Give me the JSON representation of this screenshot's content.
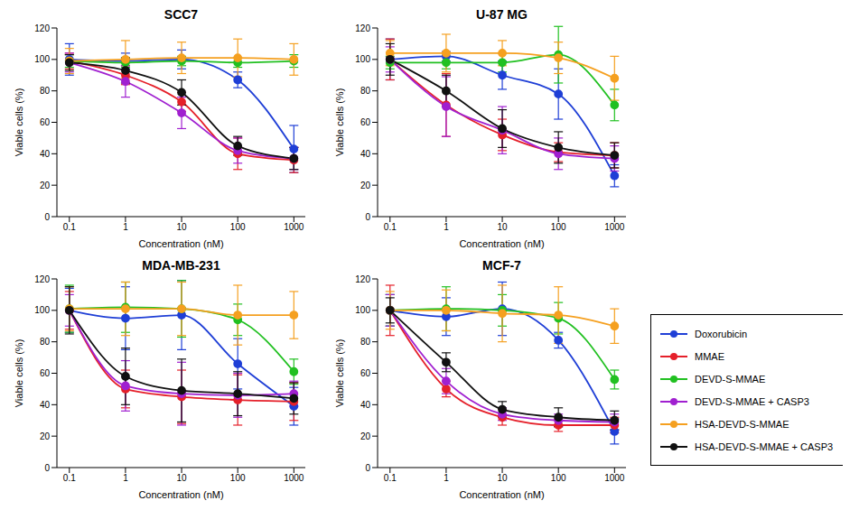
{
  "chart_data": [
    {
      "type": "line",
      "title": "SCC7",
      "x_label": "Concentration (nM)",
      "y_label": "Viable cells (%)",
      "log": "x",
      "x": [
        0.1,
        1,
        10,
        100,
        1000
      ],
      "xlim": [
        0.06,
        1600
      ],
      "xticks": [
        0.1,
        1,
        10,
        100,
        1000
      ],
      "ylim": [
        0,
        120
      ],
      "yticks": [
        0,
        20,
        40,
        60,
        80,
        100,
        120
      ],
      "marker": "circle",
      "series": [
        {
          "name": "Doxorubicin",
          "color": "#1f3fd6",
          "values": [
            100,
            99,
            100,
            87,
            43
          ],
          "errors": [
            10,
            5,
            6,
            5,
            15
          ]
        },
        {
          "name": "MMAE",
          "color": "#e5202a",
          "values": [
            99,
            90,
            73,
            40,
            36
          ],
          "errors": [
            5,
            6,
            6,
            10,
            8
          ]
        },
        {
          "name": "DEVD-S-MMAE",
          "color": "#21c021",
          "values": [
            99,
            98,
            99,
            98,
            99
          ],
          "errors": [
            4,
            3,
            3,
            3,
            4
          ]
        },
        {
          "name": "DEVD-S-MMAE + CASP3",
          "color": "#a020d0",
          "values": [
            98,
            86,
            66,
            42,
            37
          ],
          "errors": [
            6,
            10,
            10,
            8,
            7
          ]
        },
        {
          "name": "HSA-DEVD-S-MMAE",
          "color": "#f5a020",
          "values": [
            99,
            100,
            101,
            101,
            100
          ],
          "errors": [
            8,
            12,
            10,
            12,
            10
          ]
        },
        {
          "name": "HSA-DEVD-S-MMAE + CASP3",
          "color": "#111111",
          "values": [
            98,
            93,
            79,
            45,
            37
          ],
          "errors": [
            5,
            8,
            8,
            6,
            7
          ]
        }
      ]
    },
    {
      "type": "line",
      "title": "U-87 MG",
      "x_label": "Concentration (nM)",
      "y_label": "Viable cells (%)",
      "log": "x",
      "x": [
        0.1,
        1,
        10,
        100,
        1000
      ],
      "xlim": [
        0.06,
        1600
      ],
      "xticks": [
        0.1,
        1,
        10,
        100,
        1000
      ],
      "ylim": [
        0,
        120
      ],
      "yticks": [
        0,
        20,
        40,
        60,
        80,
        100,
        120
      ],
      "marker": "circle",
      "series": [
        {
          "name": "Doxorubicin",
          "color": "#1f3fd6",
          "values": [
            100,
            102,
            90,
            78,
            26
          ],
          "errors": [
            13,
            3,
            9,
            16,
            7
          ]
        },
        {
          "name": "MMAE",
          "color": "#e5202a",
          "values": [
            100,
            71,
            52,
            41,
            39
          ],
          "errors": [
            13,
            20,
            10,
            6,
            8
          ]
        },
        {
          "name": "DEVD-S-MMAE",
          "color": "#21c021",
          "values": [
            98,
            98,
            98,
            103,
            71
          ],
          "errors": [
            4,
            4,
            6,
            18,
            10
          ]
        },
        {
          "name": "DEVD-S-MMAE + CASP3",
          "color": "#a020d0",
          "values": [
            100,
            70,
            55,
            40,
            37
          ],
          "errors": [
            8,
            19,
            15,
            10,
            8
          ]
        },
        {
          "name": "HSA-DEVD-S-MMAE",
          "color": "#f5a020",
          "values": [
            104,
            104,
            104,
            101,
            88
          ],
          "errors": [
            8,
            12,
            8,
            10,
            14
          ]
        },
        {
          "name": "HSA-DEVD-S-MMAE + CASP3",
          "color": "#111111",
          "values": [
            100,
            80,
            56,
            44,
            39
          ],
          "errors": [
            10,
            10,
            12,
            10,
            8
          ]
        }
      ]
    },
    {
      "type": "line",
      "title": "MDA-MB-231",
      "x_label": "Concentration (nM)",
      "y_label": "Viable cells (%)",
      "log": "x",
      "x": [
        0.1,
        1,
        10,
        100,
        1000
      ],
      "xlim": [
        0.06,
        1600
      ],
      "xticks": [
        0.1,
        1,
        10,
        100,
        1000
      ],
      "ylim": [
        0,
        120
      ],
      "yticks": [
        0,
        20,
        40,
        60,
        80,
        100,
        120
      ],
      "marker": "circle",
      "series": [
        {
          "name": "Doxorubicin",
          "color": "#1f3fd6",
          "values": [
            100,
            95,
            97,
            66,
            39
          ],
          "errors": [
            14,
            20,
            22,
            16,
            12
          ]
        },
        {
          "name": "MMAE",
          "color": "#e5202a",
          "values": [
            100,
            50,
            45,
            43,
            42
          ],
          "errors": [
            12,
            12,
            17,
            16,
            12
          ]
        },
        {
          "name": "DEVD-S-MMAE",
          "color": "#21c021",
          "values": [
            101,
            102,
            101,
            94,
            61
          ],
          "errors": [
            15,
            16,
            18,
            10,
            8
          ]
        },
        {
          "name": "DEVD-S-MMAE + CASP3",
          "color": "#a020d0",
          "values": [
            100,
            52,
            47,
            46,
            47
          ],
          "errors": [
            10,
            16,
            20,
            14,
            8
          ]
        },
        {
          "name": "HSA-DEVD-S-MMAE",
          "color": "#f5a020",
          "values": [
            101,
            101,
            101,
            97,
            97
          ],
          "errors": [
            14,
            17,
            17,
            19,
            15
          ]
        },
        {
          "name": "HSA-DEVD-S-MMAE + CASP3",
          "color": "#111111",
          "values": [
            100,
            58,
            49,
            47,
            44
          ],
          "errors": [
            15,
            18,
            20,
            14,
            10
          ]
        }
      ]
    },
    {
      "type": "line",
      "title": "MCF-7",
      "x_label": "Concentration (nM)",
      "y_label": "Viable cells (%)",
      "log": "x",
      "x": [
        0.1,
        1,
        10,
        100,
        1000
      ],
      "xlim": [
        0.06,
        1600
      ],
      "xticks": [
        0.1,
        1,
        10,
        100,
        1000
      ],
      "ylim": [
        0,
        120
      ],
      "yticks": [
        0,
        20,
        40,
        60,
        80,
        100,
        120
      ],
      "marker": "circle",
      "legend": "right",
      "series": [
        {
          "name": "Doxorubicin",
          "color": "#1f3fd6",
          "values": [
            100,
            96,
            101,
            81,
            23
          ],
          "errors": [
            10,
            12,
            17,
            5,
            8
          ]
        },
        {
          "name": "MMAE",
          "color": "#e5202a",
          "values": [
            100,
            50,
            32,
            27,
            27
          ],
          "errors": [
            16,
            5,
            5,
            4,
            5
          ]
        },
        {
          "name": "DEVD-S-MMAE",
          "color": "#21c021",
          "values": [
            100,
            101,
            100,
            95,
            56
          ],
          "errors": [
            10,
            14,
            10,
            10,
            6
          ]
        },
        {
          "name": "DEVD-S-MMAE + CASP3",
          "color": "#a020d0",
          "values": [
            100,
            55,
            34,
            30,
            29
          ],
          "errors": [
            10,
            8,
            4,
            4,
            5
          ]
        },
        {
          "name": "HSA-DEVD-S-MMAE",
          "color": "#f5a020",
          "values": [
            100,
            100,
            98,
            97,
            90
          ],
          "errors": [
            12,
            13,
            18,
            18,
            11
          ]
        },
        {
          "name": "HSA-DEVD-S-MMAE + CASP3",
          "color": "#111111",
          "values": [
            100,
            67,
            37,
            32,
            30
          ],
          "errors": [
            8,
            6,
            5,
            6,
            6
          ]
        }
      ]
    }
  ]
}
